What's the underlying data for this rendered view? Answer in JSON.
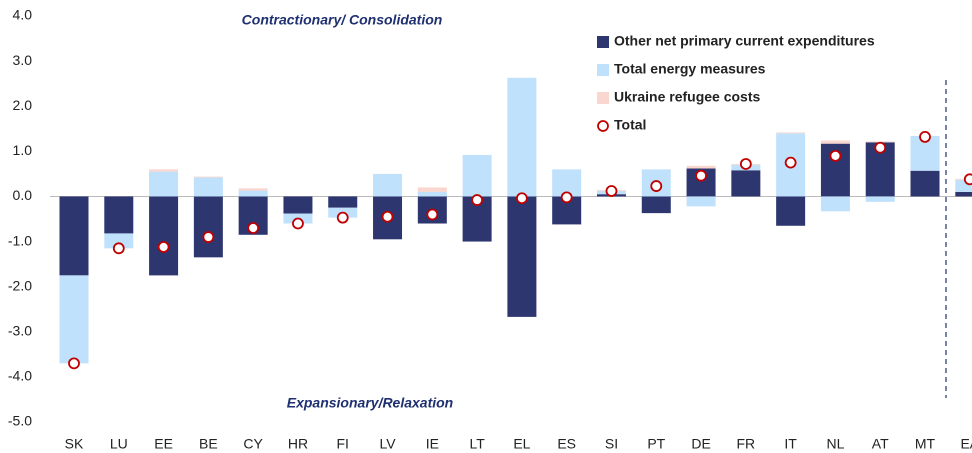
{
  "chart_data": {
    "type": "bar",
    "stacked": true,
    "annotations": [
      "Contractionary/ Consolidation",
      "Expansionary/Relaxation"
    ],
    "categories": [
      "SK",
      "LU",
      "EE",
      "BE",
      "CY",
      "HR",
      "FI",
      "LV",
      "IE",
      "LT",
      "EL",
      "ES",
      "SI",
      "PT",
      "DE",
      "FR",
      "IT",
      "NL",
      "AT",
      "MT",
      "EA"
    ],
    "series": [
      {
        "name": "Other net primary current expenditures",
        "color": "#2e3670",
        "values": [
          -1.75,
          -0.82,
          -1.75,
          -1.35,
          -0.85,
          -0.38,
          -0.25,
          -0.95,
          -0.6,
          -1.0,
          -2.67,
          -0.62,
          0.05,
          -0.37,
          0.62,
          0.58,
          -0.65,
          1.17,
          1.2,
          0.57,
          0.1
        ]
      },
      {
        "name": "Total energy measures",
        "color": "#bfe1fb",
        "values": [
          -1.95,
          -0.33,
          0.55,
          0.42,
          0.13,
          -0.22,
          -0.22,
          0.5,
          0.1,
          0.92,
          2.63,
          0.6,
          0.07,
          0.6,
          -0.22,
          0.12,
          1.4,
          -0.33,
          -0.12,
          0.77,
          0.27
        ]
      },
      {
        "name": "Ukraine refugee costs",
        "color": "#f9d6cf",
        "values": [
          0,
          0,
          0.05,
          0.02,
          0.05,
          0,
          0,
          0,
          0.1,
          0,
          0,
          0,
          0.02,
          0,
          0.06,
          0.02,
          0.02,
          0.07,
          0.02,
          0,
          0.02
        ]
      },
      {
        "name": "Total",
        "color": "#c00000",
        "marker": "circle",
        "values": [
          -3.7,
          -1.15,
          -1.12,
          -0.9,
          -0.7,
          -0.6,
          -0.47,
          -0.45,
          -0.4,
          -0.08,
          -0.04,
          -0.02,
          0.12,
          0.23,
          0.46,
          0.72,
          0.75,
          0.9,
          1.08,
          1.32,
          0.38
        ]
      }
    ],
    "ylim": [
      -5,
      4
    ],
    "yticks": [
      {
        "value": 4,
        "label": "4.0"
      },
      {
        "value": 3,
        "label": "3.0"
      },
      {
        "value": 2,
        "label": "2.0"
      },
      {
        "value": 1,
        "label": "1.0"
      },
      {
        "value": 0,
        "label": "0.0"
      },
      {
        "value": -1,
        "label": "-1.0"
      },
      {
        "value": -2,
        "label": "-2.0"
      },
      {
        "value": -3,
        "label": "-3.0"
      },
      {
        "value": -4,
        "label": "-4.0"
      },
      {
        "value": -5,
        "label": "-5.0"
      }
    ]
  }
}
